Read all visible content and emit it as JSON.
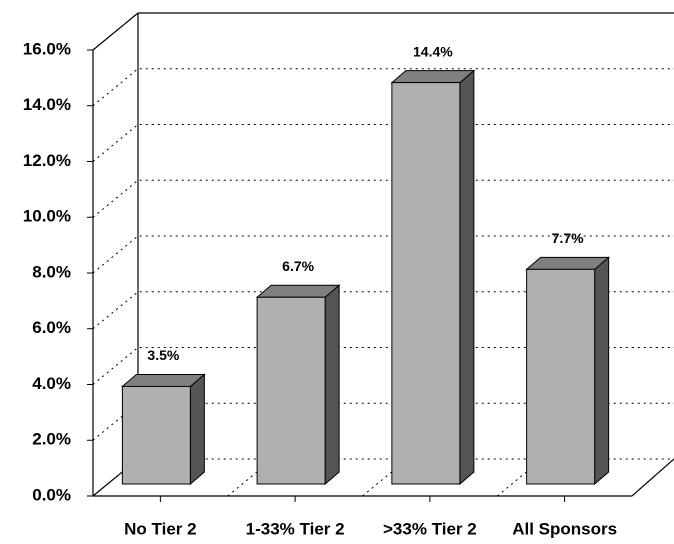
{
  "chart_data": {
    "type": "bar3d",
    "categories": [
      "No Tier 2",
      "1-33% Tier 2",
      ">33% Tier 2",
      "All Sponsors"
    ],
    "values": [
      3.5,
      6.7,
      14.4,
      7.7
    ],
    "value_labels": [
      "3.5%",
      "6.7%",
      "14.4%",
      "7.7%"
    ],
    "color": "#b0b0b0",
    "ylim": [
      0,
      16
    ],
    "yticks": [
      {
        "value": 0,
        "label": "0.0%"
      },
      {
        "value": 2,
        "label": "2.0%"
      },
      {
        "value": 4,
        "label": "4.0%"
      },
      {
        "value": 6,
        "label": "6.0%"
      },
      {
        "value": 8,
        "label": "8.0%"
      },
      {
        "value": 10,
        "label": "10.0%"
      },
      {
        "value": 12,
        "label": "12.0%"
      },
      {
        "value": 14,
        "label": "14.0%"
      },
      {
        "value": 16,
        "label": "16.0%"
      }
    ],
    "grid": true
  }
}
